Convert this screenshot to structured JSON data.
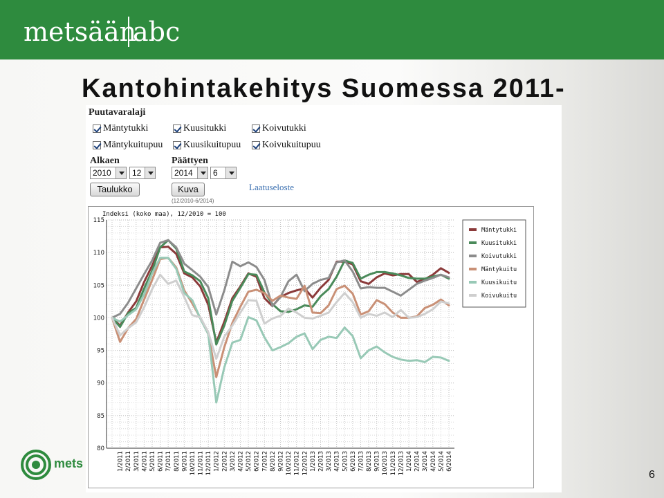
{
  "header": {
    "logo_left": "metsään",
    "logo_right": "abc",
    "brand_color": "#2e8b3e"
  },
  "slide": {
    "title": "Kantohintakehitys Suomessa 2011-",
    "page_number": "6",
    "footer_logo_text": "mets"
  },
  "form": {
    "group_title": "Puutavaralaji",
    "checkboxes": [
      {
        "label": "Mäntytukki",
        "checked": true
      },
      {
        "label": "Kuusitukki",
        "checked": true
      },
      {
        "label": "Koivutukki",
        "checked": true
      },
      {
        "label": "Mäntykuitupuu",
        "checked": true
      },
      {
        "label": "Kuusikuitupuu",
        "checked": true
      },
      {
        "label": "Koivukuitupuu",
        "checked": true
      }
    ],
    "start_label": "Alkaen",
    "start_year": "2010",
    "start_month": "12",
    "end_label": "Päättyen",
    "end_year": "2014",
    "end_month": "6",
    "table_button": "Taulukko",
    "chart_button": "Kuva",
    "quality_link": "Laatuseloste",
    "range_note": "(12/2010-6/2014)"
  },
  "chart_data": {
    "type": "line",
    "title": "Indeksi (koko maa), 12/2010 = 100",
    "xlabel": "",
    "ylabel": "",
    "ylim": [
      80,
      115
    ],
    "yticks": [
      80,
      85,
      90,
      95,
      100,
      105,
      110,
      115
    ],
    "grid": true,
    "legend_position": "right",
    "categories": [
      "12/2010",
      "1/2011",
      "2/2011",
      "3/2011",
      "4/2011",
      "5/2011",
      "6/2011",
      "7/2011",
      "8/2011",
      "9/2011",
      "10/2011",
      "11/2011",
      "12/2011",
      "1/2012",
      "2/2012",
      "3/2012",
      "4/2012",
      "5/2012",
      "6/2012",
      "7/2012",
      "8/2012",
      "9/2012",
      "10/2012",
      "11/2012",
      "12/2012",
      "1/2013",
      "2/2013",
      "3/2013",
      "4/2013",
      "5/2013",
      "6/2013",
      "7/2013",
      "8/2013",
      "9/2013",
      "10/2013",
      "11/2013",
      "12/2013",
      "1/2014",
      "2/2014",
      "3/2014",
      "4/2014",
      "5/2014",
      "6/2014"
    ],
    "tick_labels": [
      "1/2011",
      "2/2011",
      "3/2011",
      "4/2011",
      "5/2011",
      "6/2011",
      "7/2011",
      "8/2011",
      "9/2011",
      "10/2011",
      "11/2011",
      "12/2011",
      "1/2012",
      "2/2012",
      "3/2012",
      "4/2012",
      "5/2012",
      "6/2012",
      "7/2012",
      "8/2012",
      "9/2012",
      "10/2012",
      "11/2012",
      "12/2012",
      "1/2013",
      "2/2013",
      "3/2013",
      "4/2013",
      "5/2013",
      "6/2013",
      "7/2013",
      "8/2013",
      "9/2013",
      "10/2013",
      "11/2013",
      "12/2013",
      "1/2014",
      "2/2014",
      "3/2014",
      "4/2014",
      "5/2014",
      "6/2014"
    ],
    "series": [
      {
        "name": "Mäntytukki",
        "color": "#8b3a3a",
        "values": [
          100,
          98.8,
          100.8,
          102.5,
          105.5,
          108.0,
          110.8,
          110.9,
          109.8,
          106.8,
          106.2,
          104.8,
          102.0,
          96.2,
          99.4,
          103.0,
          104.8,
          106.8,
          106.3,
          103.0,
          101.8,
          103.2,
          103.8,
          104.2,
          104.5,
          103.1,
          104.6,
          105.8,
          108.6,
          108.6,
          108.2,
          105.6,
          105.2,
          106.2,
          106.8,
          106.5,
          106.7,
          106.7,
          105.5,
          105.9,
          106.6,
          107.6,
          106.9
        ]
      },
      {
        "name": "Kuusitukki",
        "color": "#4a8a5a",
        "values": [
          100,
          98.6,
          100.7,
          101.5,
          104.5,
          107.2,
          110.8,
          111.9,
          110.6,
          107.1,
          106.5,
          105.6,
          103.0,
          95.9,
          98.8,
          102.6,
          104.6,
          106.7,
          106.6,
          103.9,
          102.1,
          101.0,
          100.9,
          101.3,
          101.9,
          101.7,
          103.3,
          104.4,
          106.3,
          108.8,
          108.4,
          106.0,
          106.6,
          107.0,
          107.0,
          106.8,
          106.5,
          106.1,
          106.0,
          106.0,
          106.3,
          106.6,
          106.0
        ]
      },
      {
        "name": "Koivutukki",
        "color": "#8c8c8c",
        "values": [
          100,
          100.6,
          102.3,
          104.5,
          106.7,
          108.8,
          111.5,
          111.9,
          110.8,
          108.3,
          107.3,
          106.3,
          104.7,
          100.5,
          104.2,
          108.6,
          107.9,
          108.5,
          107.8,
          105.8,
          101.8,
          103.2,
          105.6,
          106.6,
          104.1,
          105.2,
          105.8,
          106.1,
          108.5,
          108.8,
          107.1,
          104.5,
          104.7,
          104.6,
          104.6,
          104.0,
          103.4,
          104.3,
          105.2,
          105.7,
          106.1,
          106.6,
          106.2
        ]
      },
      {
        "name": "Mäntykuitu",
        "color": "#c99076",
        "values": [
          100,
          96.3,
          98.4,
          99.8,
          102.8,
          105.8,
          109.0,
          109.2,
          107.7,
          104.2,
          102.2,
          100.0,
          97.5,
          90.9,
          95.5,
          99.2,
          101.7,
          104.0,
          104.3,
          103.8,
          102.6,
          103.4,
          103.1,
          102.9,
          104.9,
          100.8,
          100.7,
          101.9,
          104.4,
          104.9,
          103.7,
          100.5,
          101.0,
          102.7,
          102.1,
          100.8,
          100.0,
          100.0,
          100.2,
          101.5,
          102.0,
          102.8,
          101.9
        ]
      },
      {
        "name": "Kuusikuitu",
        "color": "#98c9b6",
        "values": [
          100,
          99.4,
          100.4,
          101.3,
          103.6,
          106.8,
          109.2,
          109.2,
          107.5,
          103.8,
          102.7,
          99.9,
          97.5,
          87.0,
          92.4,
          96.2,
          96.6,
          100.1,
          99.6,
          97.0,
          95.0,
          95.5,
          96.1,
          97.1,
          97.6,
          95.2,
          96.6,
          97.1,
          96.9,
          98.5,
          97.2,
          93.8,
          95.0,
          95.6,
          94.7,
          94.0,
          93.6,
          93.4,
          93.5,
          93.2,
          94.0,
          93.9,
          93.4
        ]
      },
      {
        "name": "Koivukuitu",
        "color": "#cfcfcf",
        "values": [
          100,
          97.3,
          98.4,
          99.3,
          101.6,
          104.4,
          106.6,
          105.2,
          105.7,
          103.2,
          100.4,
          100.1,
          97.8,
          93.7,
          97.1,
          98.8,
          100.8,
          102.7,
          102.6,
          99.1,
          99.9,
          100.3,
          101.4,
          100.8,
          100.0,
          99.9,
          100.3,
          100.8,
          102.4,
          103.8,
          102.4,
          100.0,
          100.6,
          100.3,
          100.8,
          100.1,
          101.2,
          100.0,
          100.1,
          100.6,
          101.3,
          102.5,
          102.2
        ]
      }
    ]
  }
}
